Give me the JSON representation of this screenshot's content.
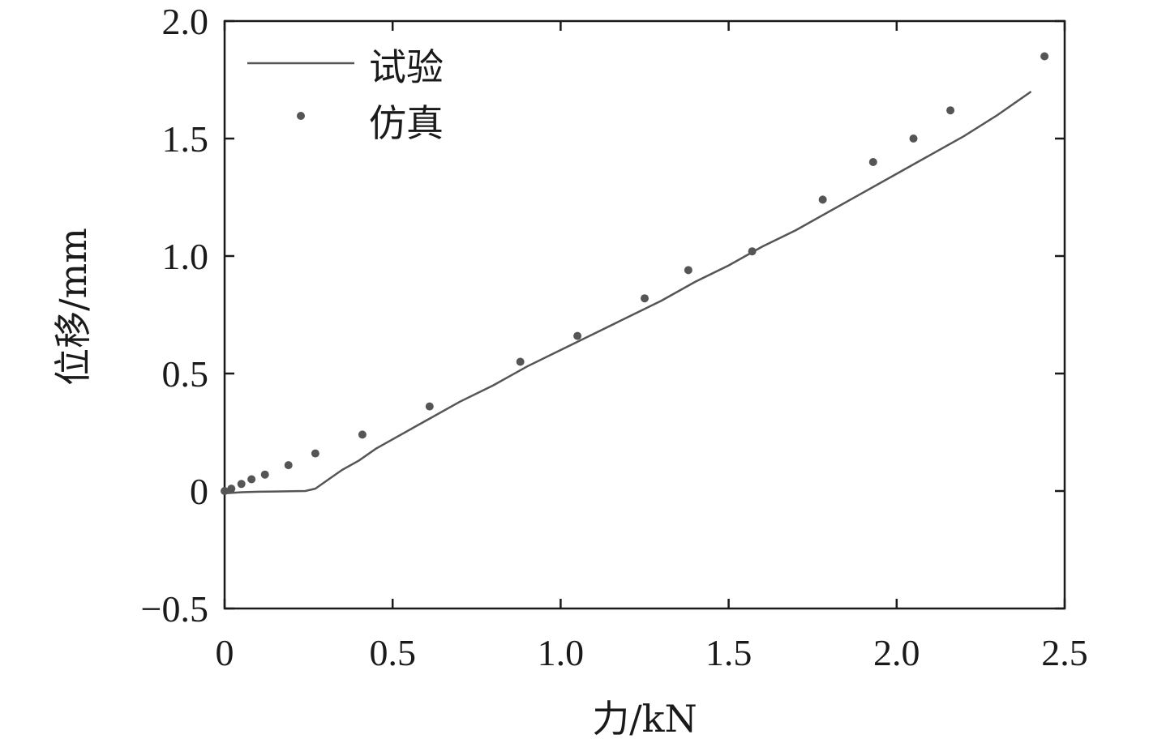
{
  "chart_data": {
    "type": "line",
    "xlabel": "力/kN",
    "ylabel": "位移/mm",
    "xlim": [
      0,
      2.5
    ],
    "ylim": [
      -0.5,
      2.0
    ],
    "x_ticks": [
      "0",
      "0.5",
      "1.0",
      "1.5",
      "2.0",
      "2.5"
    ],
    "y_ticks": [
      "−0.5",
      "0",
      "0.5",
      "1.0",
      "1.5",
      "2.0"
    ],
    "grid": false,
    "legend_position": "top-left",
    "series": [
      {
        "name": "试验",
        "kind": "line",
        "color": "#555555",
        "x": [
          0,
          0.05,
          0.1,
          0.15,
          0.2,
          0.24,
          0.27,
          0.3,
          0.35,
          0.4,
          0.45,
          0.5,
          0.6,
          0.7,
          0.8,
          0.9,
          1.0,
          1.1,
          1.2,
          1.3,
          1.4,
          1.5,
          1.6,
          1.7,
          1.8,
          1.9,
          2.0,
          2.1,
          2.2,
          2.3,
          2.4
        ],
        "y": [
          -0.01,
          -0.005,
          -0.003,
          -0.002,
          -0.001,
          0.0,
          0.01,
          0.04,
          0.09,
          0.13,
          0.18,
          0.22,
          0.3,
          0.38,
          0.45,
          0.53,
          0.6,
          0.67,
          0.74,
          0.81,
          0.89,
          0.96,
          1.04,
          1.11,
          1.19,
          1.27,
          1.35,
          1.43,
          1.51,
          1.6,
          1.7
        ]
      },
      {
        "name": "仿真",
        "kind": "scatter",
        "color": "#555555",
        "x": [
          0.0,
          0.02,
          0.05,
          0.08,
          0.12,
          0.19,
          0.27,
          0.41,
          0.61,
          0.88,
          1.05,
          1.25,
          1.38,
          1.57,
          1.78,
          1.93,
          2.05,
          2.16,
          2.44
        ],
        "y": [
          0.0,
          0.01,
          0.03,
          0.05,
          0.07,
          0.11,
          0.16,
          0.24,
          0.36,
          0.55,
          0.66,
          0.82,
          0.94,
          1.02,
          1.24,
          1.4,
          1.5,
          1.62,
          1.85
        ]
      }
    ]
  }
}
